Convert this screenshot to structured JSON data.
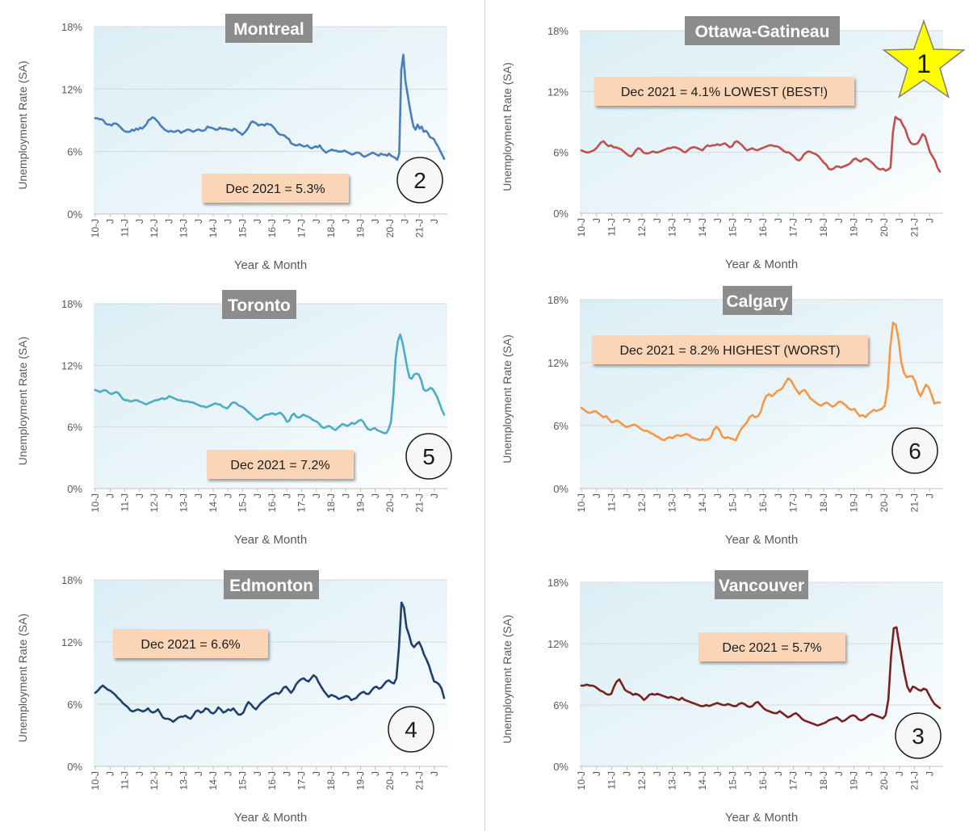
{
  "chart_data": [
    {
      "type": "line",
      "title": "Montreal",
      "xlabel": "Year & Month",
      "ylabel": "Unemployment Rate (SA)",
      "ylim": [
        0,
        18
      ],
      "yticks": [
        "0%",
        "6%",
        "12%",
        "18%"
      ],
      "x_ticks": [
        "10-J",
        "J",
        "11-J",
        "J",
        "12-J",
        "J",
        "13-J",
        "J",
        "14-J",
        "J",
        "15-J",
        "J",
        "16-J",
        "J",
        "17-J",
        "J",
        "18-J",
        "J",
        "19-J",
        "J",
        "20-J",
        "J",
        "21-J",
        "J"
      ],
      "grid": true,
      "color": "#4a7ebb",
      "annotation": "Dec 2021 = 5.3%",
      "rank": "2",
      "series": [
        {
          "values": [
            9.2,
            9.2,
            9.1,
            9.1,
            9.0,
            8.7,
            8.6,
            8.6,
            8.5,
            8.7,
            8.7,
            8.6,
            8.4,
            8.2,
            8.0,
            7.9,
            7.9,
            7.9,
            8.1,
            8.0,
            8.2,
            8.1,
            8.3,
            8.2,
            8.4,
            8.6,
            9.0,
            9.1,
            9.3,
            9.2,
            9.0,
            8.8,
            8.5,
            8.3,
            8.1,
            8.0,
            7.9,
            8.0,
            7.9,
            7.9,
            8.0,
            8.0,
            7.8,
            7.9,
            8.0,
            8.1,
            8.1,
            8.0,
            7.9,
            8.0,
            8.1,
            8.1,
            8.0,
            8.0,
            8.1,
            8.4,
            8.3,
            8.3,
            8.2,
            8.1,
            8.1,
            8.3,
            8.2,
            8.2,
            8.2,
            8.1,
            8.1,
            8.0,
            8.2,
            8.1,
            7.9,
            7.8,
            7.6,
            7.8,
            8.0,
            8.3,
            8.7,
            8.9,
            8.8,
            8.7,
            8.5,
            8.6,
            8.6,
            8.5,
            8.7,
            8.6,
            8.6,
            8.4,
            8.2,
            7.9,
            7.7,
            7.6,
            7.6,
            7.5,
            7.3,
            7.2,
            6.8,
            6.7,
            6.6,
            6.6,
            6.7,
            6.6,
            6.5,
            6.5,
            6.6,
            6.4,
            6.3,
            6.4,
            6.5,
            6.4,
            6.6,
            6.3,
            6.1,
            5.9,
            6.0,
            6.1,
            6.2,
            6.1,
            6.1,
            6.0,
            6.0,
            6.0,
            6.1,
            6.0,
            5.9,
            5.8,
            5.7,
            5.8,
            5.9,
            5.9,
            5.8,
            5.6,
            5.5,
            5.6,
            5.7,
            5.8,
            5.9,
            5.8,
            5.7,
            5.6,
            5.8,
            5.7,
            5.7,
            5.6,
            5.8,
            5.6,
            5.5,
            5.4,
            5.2,
            5.8,
            13.8,
            15.3,
            12.8,
            11.6,
            10.4,
            9.3,
            8.4,
            8.1,
            8.6,
            8.2,
            8.4,
            7.9,
            8.0,
            7.8,
            7.4,
            7.3,
            7.2,
            6.8,
            6.5,
            6.1,
            5.7,
            5.3
          ]
        }
      ]
    },
    {
      "type": "line",
      "title": "Ottawa-Gatineau",
      "xlabel": "Year & Month",
      "ylabel": "Unemployment Rate (SA)",
      "ylim": [
        0,
        18
      ],
      "yticks": [
        "0%",
        "6%",
        "12%",
        "18%"
      ],
      "x_ticks": [
        "10-J",
        "J",
        "11-J",
        "J",
        "12-J",
        "J",
        "13-J",
        "J",
        "14-J",
        "J",
        "15-J",
        "J",
        "16-J",
        "J",
        "17-J",
        "J",
        "18-J",
        "J",
        "19-J",
        "J",
        "20-J",
        "J",
        "21-J",
        "J"
      ],
      "grid": true,
      "color": "#c0504d",
      "annotation": "Dec 2021 = 4.1% LOWEST (BEST!)",
      "rank": "1",
      "series": [
        {
          "values": [
            6.2,
            6.1,
            6.0,
            6.0,
            6.1,
            6.2,
            6.4,
            6.7,
            7.0,
            7.1,
            6.8,
            6.6,
            6.7,
            6.5,
            6.5,
            6.4,
            6.3,
            6.1,
            5.9,
            5.7,
            5.6,
            5.8,
            6.2,
            6.4,
            6.3,
            6.0,
            5.9,
            5.9,
            6.0,
            6.1,
            6.0,
            6.0,
            6.1,
            6.2,
            6.3,
            6.4,
            6.4,
            6.5,
            6.5,
            6.4,
            6.3,
            6.1,
            6.0,
            6.2,
            6.4,
            6.5,
            6.5,
            6.4,
            6.3,
            6.2,
            6.5,
            6.7,
            6.6,
            6.7,
            6.7,
            6.8,
            6.7,
            6.8,
            6.9,
            6.7,
            6.5,
            6.6,
            7.0,
            7.1,
            6.9,
            6.7,
            6.4,
            6.2,
            6.3,
            6.4,
            6.3,
            6.2,
            6.3,
            6.4,
            6.5,
            6.6,
            6.7,
            6.7,
            6.6,
            6.6,
            6.5,
            6.3,
            6.1,
            6.0,
            6.0,
            5.8,
            5.6,
            5.3,
            5.2,
            5.4,
            5.8,
            6.0,
            6.1,
            6.0,
            5.9,
            5.8,
            5.6,
            5.3,
            5.0,
            4.8,
            4.4,
            4.3,
            4.4,
            4.6,
            4.6,
            4.5,
            4.6,
            4.7,
            4.8,
            5.0,
            5.3,
            5.4,
            5.2,
            5.1,
            5.3,
            5.4,
            5.3,
            5.1,
            4.9,
            4.6,
            4.4,
            4.3,
            4.4,
            4.2,
            4.3,
            4.5,
            8.0,
            9.5,
            9.3,
            9.2,
            8.7,
            8.3,
            7.5,
            7.0,
            6.8,
            6.8,
            6.9,
            7.3,
            7.8,
            7.6,
            6.8,
            6.0,
            5.6,
            5.2,
            4.5,
            4.1
          ]
        }
      ]
    },
    {
      "type": "line",
      "title": "Toronto",
      "xlabel": "Year & Month",
      "ylabel": "Unemployment Rate (SA)",
      "ylim": [
        0,
        18
      ],
      "yticks": [
        "0%",
        "6%",
        "12%",
        "18%"
      ],
      "x_ticks": [
        "10-J",
        "J",
        "11-J",
        "J",
        "12-J",
        "J",
        "13-J",
        "J",
        "14-J",
        "J",
        "15-J",
        "J",
        "16-J",
        "J",
        "17-J",
        "J",
        "18-J",
        "J",
        "19-J",
        "J",
        "20-J",
        "J",
        "21-J",
        "J"
      ],
      "grid": true,
      "color": "#4bacc6",
      "annotation": "Dec 2021 = 7.2%",
      "rank": "5",
      "series": [
        {
          "values": [
            9.6,
            9.5,
            9.4,
            9.5,
            9.6,
            9.5,
            9.3,
            9.2,
            9.3,
            9.4,
            9.3,
            9.0,
            8.7,
            8.6,
            8.6,
            8.5,
            8.5,
            8.6,
            8.6,
            8.5,
            8.4,
            8.3,
            8.2,
            8.3,
            8.4,
            8.5,
            8.6,
            8.6,
            8.7,
            8.8,
            8.7,
            8.8,
            9.0,
            8.9,
            8.8,
            8.7,
            8.6,
            8.6,
            8.5,
            8.5,
            8.5,
            8.4,
            8.4,
            8.3,
            8.2,
            8.1,
            8.0,
            8.0,
            7.9,
            8.0,
            8.1,
            8.2,
            8.3,
            8.2,
            8.2,
            8.0,
            7.9,
            7.8,
            8.0,
            8.3,
            8.4,
            8.3,
            8.1,
            8.0,
            7.9,
            7.7,
            7.5,
            7.3,
            7.1,
            6.9,
            6.7,
            6.8,
            6.9,
            7.1,
            7.2,
            7.2,
            7.3,
            7.3,
            7.2,
            7.3,
            7.4,
            7.2,
            6.9,
            6.5,
            6.6,
            7.1,
            7.3,
            7.0,
            6.9,
            7.0,
            7.2,
            7.1,
            7.0,
            6.9,
            6.7,
            6.6,
            6.5,
            6.3,
            6.0,
            5.9,
            6.0,
            6.1,
            6.0,
            5.8,
            5.7,
            5.9,
            6.1,
            6.3,
            6.2,
            6.1,
            6.2,
            6.4,
            6.3,
            6.4,
            6.6,
            6.7,
            6.5,
            6.1,
            5.8,
            5.7,
            5.8,
            5.9,
            5.7,
            5.6,
            5.5,
            5.4,
            5.4,
            5.8,
            6.5,
            9.0,
            12.6,
            14.4,
            15.0,
            14.2,
            13.0,
            11.8,
            10.8,
            10.7,
            11.1,
            11.2,
            11.1,
            10.6,
            9.7,
            9.5,
            9.6,
            9.8,
            9.7,
            9.3,
            8.9,
            8.3,
            7.7,
            7.2
          ]
        }
      ]
    },
    {
      "type": "line",
      "title": "Calgary",
      "xlabel": "Year & Month",
      "ylabel": "Unemployment Rate (SA)",
      "ylim": [
        0,
        18
      ],
      "yticks": [
        "0%",
        "6%",
        "12%",
        "18%"
      ],
      "x_ticks": [
        "10-J",
        "J",
        "11-J",
        "J",
        "12-J",
        "J",
        "13-J",
        "J",
        "14-J",
        "J",
        "15-J",
        "J",
        "16-J",
        "J",
        "17-J",
        "J",
        "18-J",
        "J",
        "19-J",
        "J",
        "20-J",
        "J",
        "21-J",
        "J"
      ],
      "grid": true,
      "color": "#f79646",
      "annotation": "Dec 2021 = 8.2% HIGHEST (WORST)",
      "rank": "6",
      "series": [
        {
          "values": [
            7.7,
            7.5,
            7.3,
            7.2,
            7.3,
            7.4,
            7.2,
            7.0,
            6.8,
            6.9,
            6.6,
            6.3,
            6.4,
            6.5,
            6.3,
            6.1,
            5.9,
            5.9,
            6.0,
            6.1,
            6.0,
            5.8,
            5.6,
            5.5,
            5.5,
            5.3,
            5.2,
            5.0,
            4.9,
            4.7,
            4.6,
            4.8,
            4.9,
            4.8,
            5.0,
            5.1,
            5.0,
            5.1,
            5.2,
            5.1,
            4.9,
            4.8,
            4.7,
            4.6,
            4.7,
            4.6,
            4.7,
            4.9,
            5.6,
            5.9,
            5.6,
            5.0,
            4.8,
            4.9,
            4.8,
            4.7,
            4.6,
            5.2,
            5.7,
            6.0,
            6.3,
            6.8,
            7.0,
            6.8,
            6.9,
            7.3,
            8.2,
            8.8,
            9.0,
            8.8,
            9.0,
            9.3,
            9.4,
            9.6,
            10.1,
            10.5,
            10.3,
            9.8,
            9.4,
            9.0,
            9.3,
            9.4,
            9.0,
            8.6,
            8.4,
            8.2,
            8.0,
            7.9,
            8.1,
            8.2,
            8.0,
            7.8,
            7.9,
            8.2,
            8.3,
            8.1,
            7.9,
            7.6,
            7.5,
            7.6,
            7.2,
            6.9,
            7.0,
            6.8,
            7.1,
            7.3,
            7.5,
            7.4,
            7.5,
            7.6,
            7.9,
            9.5,
            13.5,
            15.8,
            15.6,
            14.2,
            12.0,
            11.0,
            10.6,
            10.7,
            10.7,
            10.2,
            9.3,
            8.8,
            9.4,
            9.9,
            9.6,
            8.9,
            8.1,
            8.2,
            8.2
          ]
        }
      ]
    },
    {
      "type": "line",
      "title": "Edmonton",
      "xlabel": "Year & Month",
      "ylabel": "Unemployment Rate (SA)",
      "ylim": [
        0,
        18
      ],
      "yticks": [
        "0%",
        "6%",
        "12%",
        "18%"
      ],
      "x_ticks": [
        "10-J",
        "J",
        "11-J",
        "J",
        "12-J",
        "J",
        "13-J",
        "J",
        "14-J",
        "J",
        "15-J",
        "J",
        "16-J",
        "J",
        "17-J",
        "J",
        "18-J",
        "J",
        "19-J",
        "J",
        "20-J",
        "J",
        "21-J",
        "J"
      ],
      "grid": true,
      "color": "#1f3f6e",
      "annotation": "Dec 2021 = 6.6%",
      "rank": "4",
      "series": [
        {
          "values": [
            7.1,
            7.3,
            7.6,
            7.8,
            7.6,
            7.4,
            7.3,
            7.1,
            6.9,
            6.6,
            6.4,
            6.1,
            5.9,
            5.7,
            5.4,
            5.3,
            5.4,
            5.5,
            5.4,
            5.3,
            5.4,
            5.6,
            5.3,
            5.2,
            5.3,
            5.5,
            5.1,
            4.7,
            4.6,
            4.6,
            4.5,
            4.3,
            4.5,
            4.7,
            4.8,
            4.8,
            4.9,
            4.7,
            4.6,
            4.9,
            5.3,
            5.4,
            5.2,
            5.3,
            5.6,
            5.5,
            5.2,
            5.1,
            5.3,
            5.7,
            5.5,
            5.2,
            5.3,
            5.5,
            5.4,
            5.6,
            5.3,
            5.0,
            5.0,
            5.2,
            5.8,
            6.2,
            6.0,
            5.7,
            5.5,
            5.8,
            6.1,
            6.3,
            6.5,
            6.7,
            6.9,
            7.0,
            7.1,
            7.0,
            7.2,
            7.6,
            7.7,
            7.4,
            7.1,
            7.4,
            7.9,
            8.2,
            8.4,
            8.5,
            8.3,
            8.2,
            8.5,
            8.8,
            8.6,
            8.1,
            7.7,
            7.3,
            7.0,
            6.7,
            6.9,
            6.8,
            6.7,
            6.5,
            6.6,
            6.7,
            6.8,
            6.7,
            6.4,
            6.5,
            6.6,
            6.9,
            7.1,
            7.2,
            7.0,
            7.0,
            7.3,
            7.6,
            7.7,
            7.5,
            7.6,
            7.9,
            8.2,
            8.3,
            8.1,
            8.0,
            8.5,
            11.5,
            15.8,
            15.3,
            13.4,
            12.7,
            11.8,
            11.5,
            11.8,
            12.0,
            11.5,
            10.8,
            10.3,
            9.7,
            8.9,
            8.2,
            8.1,
            7.9,
            7.5,
            6.6
          ]
        }
      ]
    },
    {
      "type": "line",
      "title": "Vancouver",
      "xlabel": "Year & Month",
      "ylabel": "Unemployment Rate (SA)",
      "ylim": [
        0,
        18
      ],
      "yticks": [
        "0%",
        "6%",
        "12%",
        "18%"
      ],
      "x_ticks": [
        "10-J",
        "J",
        "11-J",
        "J",
        "12-J",
        "J",
        "13-J",
        "J",
        "14-J",
        "J",
        "15-J",
        "J",
        "16-J",
        "J",
        "17-J",
        "J",
        "18-J",
        "J",
        "19-J",
        "J",
        "20-J",
        "J",
        "21-J",
        "J"
      ],
      "grid": true,
      "color": "#7b2020",
      "annotation": "Dec 2021 = 5.7%",
      "rank": "3",
      "series": [
        {
          "values": [
            7.9,
            7.9,
            8.0,
            7.9,
            7.9,
            7.8,
            7.6,
            7.4,
            7.3,
            7.1,
            7.0,
            7.1,
            7.8,
            8.3,
            8.5,
            8.0,
            7.5,
            7.3,
            7.2,
            7.0,
            7.1,
            7.0,
            6.8,
            6.5,
            6.7,
            7.0,
            7.1,
            7.0,
            7.1,
            7.0,
            6.9,
            6.8,
            6.7,
            6.8,
            6.7,
            6.6,
            6.5,
            6.7,
            6.5,
            6.4,
            6.3,
            6.2,
            6.1,
            6.0,
            5.9,
            5.9,
            6.0,
            5.9,
            6.0,
            6.1,
            6.2,
            6.1,
            6.0,
            6.0,
            6.1,
            6.0,
            5.9,
            5.9,
            6.1,
            6.2,
            6.1,
            5.9,
            5.8,
            5.9,
            6.2,
            6.3,
            6.0,
            5.7,
            5.5,
            5.4,
            5.3,
            5.2,
            5.2,
            5.4,
            5.2,
            5.0,
            4.8,
            4.9,
            5.1,
            5.2,
            5.0,
            4.7,
            4.5,
            4.4,
            4.3,
            4.2,
            4.1,
            4.0,
            4.1,
            4.2,
            4.3,
            4.5,
            4.6,
            4.7,
            4.8,
            4.6,
            4.4,
            4.5,
            4.7,
            4.9,
            5.0,
            4.9,
            4.6,
            4.5,
            4.6,
            4.8,
            5.0,
            5.1,
            5.0,
            4.9,
            4.8,
            4.7,
            5.0,
            6.5,
            10.8,
            13.5,
            13.6,
            12.0,
            10.5,
            9.0,
            7.8,
            7.3,
            7.8,
            7.7,
            7.5,
            7.4,
            7.6,
            7.5,
            7.0,
            6.5,
            6.1,
            5.9,
            5.7
          ]
        }
      ]
    }
  ]
}
